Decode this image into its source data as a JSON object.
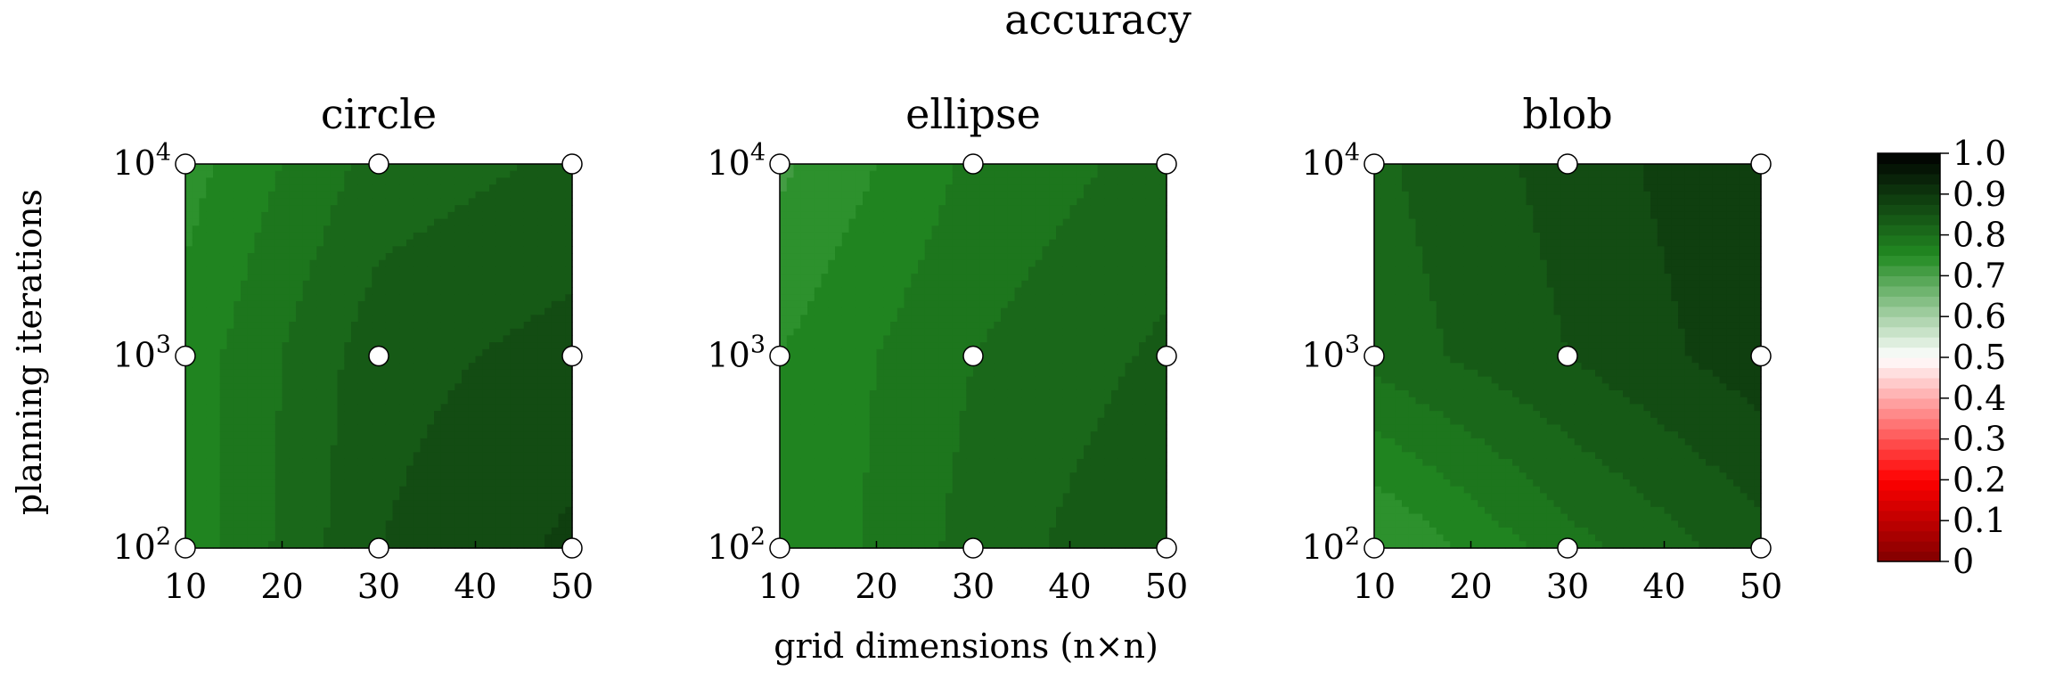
{
  "suptitle": "accuracy",
  "xlabel": "grid dimensions (n×n)",
  "ylabel": "planning iterations",
  "chart_data": [
    {
      "type": "heatmap",
      "title": "circle",
      "x": [
        10,
        30,
        50
      ],
      "y": [
        100,
        1000,
        10000
      ],
      "yscale": "log",
      "xlim": [
        10,
        50
      ],
      "ylim": [
        100,
        10000
      ],
      "z": [
        [
          0.76,
          0.85,
          0.88
        ],
        [
          0.76,
          0.84,
          0.86
        ],
        [
          0.74,
          0.81,
          0.83
        ]
      ],
      "xticks": [
        "10",
        "20",
        "30",
        "40",
        "50"
      ],
      "ytick_bases": [
        "10",
        "10",
        "10"
      ],
      "ytick_exps": [
        "2",
        "3",
        "4"
      ]
    },
    {
      "type": "heatmap",
      "title": "ellipse",
      "x": [
        10,
        30,
        50
      ],
      "y": [
        100,
        1000,
        10000
      ],
      "yscale": "log",
      "xlim": [
        10,
        50
      ],
      "ylim": [
        100,
        10000
      ],
      "z": [
        [
          0.75,
          0.81,
          0.85
        ],
        [
          0.75,
          0.8,
          0.83
        ],
        [
          0.72,
          0.78,
          0.81
        ]
      ],
      "xticks": [
        "10",
        "20",
        "30",
        "40",
        "50"
      ],
      "ytick_bases": [
        "10",
        "10",
        "10"
      ],
      "ytick_exps": [
        "2",
        "3",
        "4"
      ]
    },
    {
      "type": "heatmap",
      "title": "blob",
      "x": [
        10,
        30,
        50
      ],
      "y": [
        100,
        1000,
        10000
      ],
      "yscale": "log",
      "xlim": [
        10,
        50
      ],
      "ylim": [
        100,
        10000
      ],
      "z": [
        [
          0.72,
          0.79,
          0.84
        ],
        [
          0.81,
          0.85,
          0.89
        ],
        [
          0.82,
          0.86,
          0.9
        ]
      ],
      "xticks": [
        "10",
        "20",
        "30",
        "40",
        "50"
      ],
      "ytick_bases": [
        "10",
        "10",
        "10"
      ],
      "ytick_exps": [
        "2",
        "3",
        "4"
      ]
    }
  ],
  "colorbar": {
    "range": [
      0,
      1
    ],
    "ticks": [
      "0",
      "0.1",
      "0.2",
      "0.3",
      "0.4",
      "0.5",
      "0.6",
      "0.7",
      "0.8",
      "0.9",
      "1.0"
    ],
    "colors": {
      "dark_red": "#800000",
      "red": "#ff0000",
      "white": "#ffffff",
      "green": "#228b22",
      "black": "#000000"
    }
  }
}
